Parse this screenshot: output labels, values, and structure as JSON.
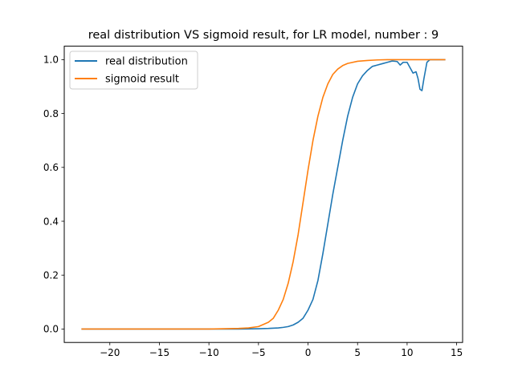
{
  "chart_data": {
    "type": "line",
    "title": "real distribution VS sigmoid result, for LR model, number : 9",
    "xlabel": "",
    "ylabel": "",
    "xlim": [
      -24.6,
      15.6
    ],
    "ylim": [
      -0.05,
      1.05
    ],
    "x_ticks": [
      -20,
      -15,
      -10,
      -5,
      0,
      5,
      10,
      15
    ],
    "x_tick_labels": [
      "−20",
      "−15",
      "−10",
      "−5",
      "0",
      "5",
      "10",
      "15"
    ],
    "y_ticks": [
      0,
      0.2,
      0.4,
      0.6,
      0.8,
      1.0
    ],
    "y_tick_labels": [
      "0.0",
      "0.2",
      "0.4",
      "0.6",
      "0.8",
      "1.0"
    ],
    "grid": false,
    "legend_position": "top-left",
    "series": [
      {
        "name": "real distribution",
        "color": "#1f77b4",
        "x": [
          -22.8,
          -20,
          -15,
          -10,
          -7,
          -5,
          -4,
          -3,
          -2.5,
          -2,
          -1.5,
          -1,
          -0.5,
          0,
          0.5,
          1,
          1.5,
          2,
          2.5,
          3,
          3.5,
          4,
          4.5,
          5,
          5.5,
          6,
          6.5,
          7,
          7.5,
          8,
          8.5,
          9,
          9.3,
          9.6,
          10,
          10.3,
          10.6,
          10.9,
          11.1,
          11.3,
          11.5,
          11.7,
          12,
          12.3,
          12.6,
          13,
          13.8
        ],
        "y": [
          0,
          0,
          0,
          0,
          0,
          0.001,
          0.002,
          0.004,
          0.006,
          0.009,
          0.015,
          0.025,
          0.04,
          0.07,
          0.11,
          0.18,
          0.28,
          0.39,
          0.5,
          0.6,
          0.7,
          0.79,
          0.86,
          0.91,
          0.94,
          0.96,
          0.975,
          0.98,
          0.985,
          0.99,
          0.995,
          0.993,
          0.98,
          0.99,
          0.99,
          0.97,
          0.95,
          0.955,
          0.93,
          0.89,
          0.885,
          0.93,
          0.99,
          1.0,
          1.0,
          1.0,
          1.0
        ]
      },
      {
        "name": "sigmoid result",
        "color": "#ff7f0e",
        "x": [
          -22.8,
          -20,
          -15,
          -10,
          -7,
          -6,
          -5,
          -4,
          -3.5,
          -3,
          -2.5,
          -2,
          -1.5,
          -1,
          -0.5,
          0,
          0.5,
          1,
          1.5,
          2,
          2.5,
          3,
          3.5,
          4,
          5,
          6,
          7,
          8,
          10,
          12,
          13.8
        ],
        "y": [
          0,
          0,
          0,
          0,
          0.002,
          0.004,
          0.009,
          0.025,
          0.04,
          0.07,
          0.11,
          0.17,
          0.25,
          0.35,
          0.47,
          0.59,
          0.7,
          0.79,
          0.86,
          0.91,
          0.945,
          0.965,
          0.978,
          0.986,
          0.994,
          0.997,
          0.999,
          1.0,
          1.0,
          1.0,
          1.0
        ]
      }
    ]
  }
}
